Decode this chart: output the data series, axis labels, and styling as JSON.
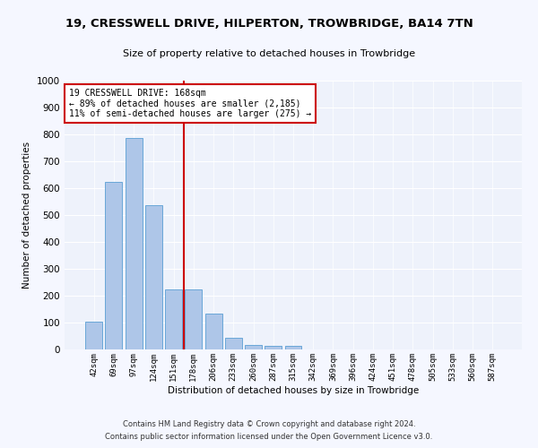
{
  "title": "19, CRESSWELL DRIVE, HILPERTON, TROWBRIDGE, BA14 7TN",
  "subtitle": "Size of property relative to detached houses in Trowbridge",
  "xlabel": "Distribution of detached houses by size in Trowbridge",
  "ylabel": "Number of detached properties",
  "bar_labels": [
    "42sqm",
    "69sqm",
    "97sqm",
    "124sqm",
    "151sqm",
    "178sqm",
    "206sqm",
    "233sqm",
    "260sqm",
    "287sqm",
    "315sqm",
    "342sqm",
    "369sqm",
    "396sqm",
    "424sqm",
    "451sqm",
    "478sqm",
    "505sqm",
    "533sqm",
    "560sqm",
    "587sqm"
  ],
  "bar_values": [
    103,
    622,
    787,
    537,
    222,
    222,
    133,
    42,
    17,
    15,
    12,
    0,
    0,
    0,
    0,
    0,
    0,
    0,
    0,
    0,
    0
  ],
  "bar_color": "#aec6e8",
  "bar_edge_color": "#5a9fd4",
  "annotation_line1": "19 CRESSWELL DRIVE: 168sqm",
  "annotation_line2": "← 89% of detached houses are smaller (2,185)",
  "annotation_line3": "11% of semi-detached houses are larger (275) →",
  "vline_color": "#cc0000",
  "ylim": [
    0,
    1000
  ],
  "yticks": [
    0,
    100,
    200,
    300,
    400,
    500,
    600,
    700,
    800,
    900,
    1000
  ],
  "footnote1": "Contains HM Land Registry data © Crown copyright and database right 2024.",
  "footnote2": "Contains public sector information licensed under the Open Government Licence v3.0.",
  "background_color": "#eef2fb",
  "fig_background_color": "#f5f7ff",
  "annotation_box_color": "#ffffff",
  "annotation_box_edge": "#cc0000"
}
